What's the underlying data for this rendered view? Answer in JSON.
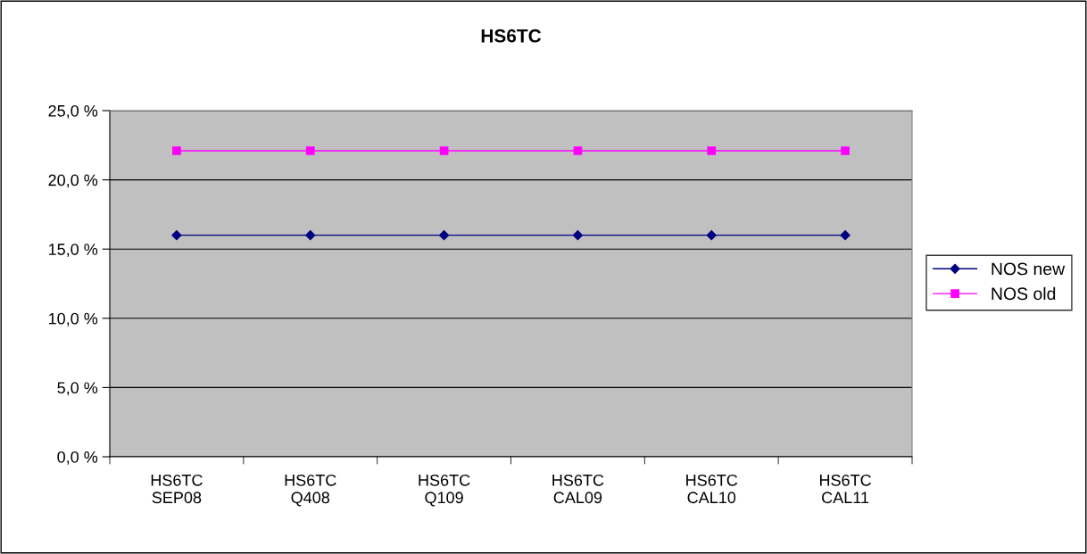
{
  "chart_data": {
    "type": "line",
    "title": "HS6TC",
    "categories": [
      "HS6TC\nSEP08",
      "HS6TC\nQ408",
      "HS6TC\nQ109",
      "HS6TC\nCAL09",
      "HS6TC\nCAL10",
      "HS6TC\nCAL11"
    ],
    "series": [
      {
        "name": "NOS new",
        "color": "#000080",
        "marker": "diamond",
        "values": [
          16.0,
          16.0,
          16.0,
          16.0,
          16.0,
          16.0
        ]
      },
      {
        "name": "NOS old",
        "color": "#ff00ff",
        "marker": "square",
        "values": [
          22.1,
          22.1,
          22.1,
          22.1,
          22.1,
          22.1
        ]
      }
    ],
    "ylim": [
      0,
      25
    ],
    "yticks": [
      {
        "value": 0,
        "label": "0,0 %"
      },
      {
        "value": 5,
        "label": "5,0 %"
      },
      {
        "value": 10,
        "label": "10,0 %"
      },
      {
        "value": 15,
        "label": "15,0 %"
      },
      {
        "value": 20,
        "label": "20,0 %"
      },
      {
        "value": 25,
        "label": "25,0 %"
      }
    ],
    "grid": "y",
    "legend": "right",
    "line_style": "solid"
  }
}
